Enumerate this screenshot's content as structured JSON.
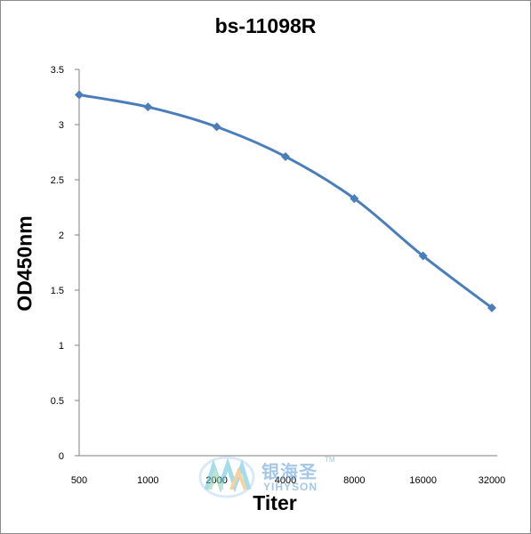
{
  "chart_data": {
    "type": "line",
    "title": "bs-11098R",
    "xlabel": "Titer",
    "ylabel": "OD450nm",
    "categories": [
      "500",
      "1000",
      "2000",
      "4000",
      "8000",
      "16000",
      "32000"
    ],
    "values": [
      3.27,
      3.16,
      2.98,
      2.71,
      2.33,
      1.81,
      1.34
    ],
    "ylim": [
      0,
      3.5
    ],
    "yticks": [
      "0",
      "0.5",
      "1",
      "1.5",
      "2",
      "2.5",
      "3",
      "3.5"
    ],
    "grid": false,
    "legend": "none",
    "line_color": "#4a7ebb"
  },
  "watermark": {
    "chinese": "银海圣",
    "english": "YIHYSON",
    "tm": "TM"
  }
}
